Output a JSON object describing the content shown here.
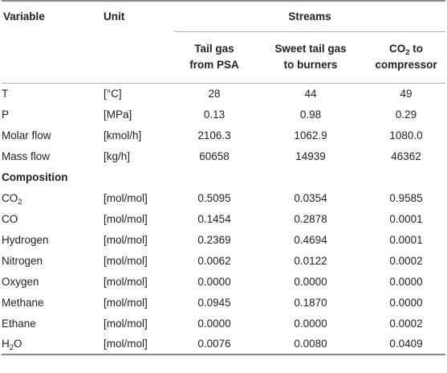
{
  "table": {
    "header": {
      "variable": "Variable",
      "unit": "Unit",
      "streams": "Streams",
      "col1": {
        "line1": "Tail gas",
        "line2": "from PSA"
      },
      "col2": {
        "line1": "Sweet tail gas",
        "line2": "to burners"
      },
      "col3": {
        "line1a": "CO",
        "line1sub": "2",
        "line1b": " to",
        "line2": "compressor"
      }
    },
    "rows": [
      {
        "var": "T",
        "unit": "[°C]",
        "v1": "28",
        "v2": "44",
        "v3": "49"
      },
      {
        "var": "P",
        "unit": "[MPa]",
        "v1": "0.13",
        "v2": "0.98",
        "v3": "0.29"
      },
      {
        "var": "Molar flow",
        "unit": "[kmol/h]",
        "v1": "2106.3",
        "v2": "1062.9",
        "v3": "1080.0"
      },
      {
        "var": "Mass flow",
        "unit": "[kg/h]",
        "v1": "60658",
        "v2": "14939",
        "v3": "46362"
      }
    ],
    "section": "Composition",
    "composition": [
      {
        "var": "CO",
        "sub": "2",
        "unit": "[mol/mol]",
        "v1": "0.5095",
        "v2": "0.0354",
        "v3": "0.9585"
      },
      {
        "var": "CO",
        "sub": "",
        "unit": "[mol/mol]",
        "v1": "0.1454",
        "v2": "0.2878",
        "v3": "0.0001"
      },
      {
        "var": "Hydrogen",
        "sub": "",
        "unit": "[mol/mol]",
        "v1": "0.2369",
        "v2": "0.4694",
        "v3": "0.0001"
      },
      {
        "var": "Nitrogen",
        "sub": "",
        "unit": "[mol/mol]",
        "v1": "0.0062",
        "v2": "0.0122",
        "v3": "0.0002"
      },
      {
        "var": "Oxygen",
        "sub": "",
        "unit": "[mol/mol]",
        "v1": "0.0000",
        "v2": "0.0000",
        "v3": "0.0000"
      },
      {
        "var": "Methane",
        "sub": "",
        "unit": "[mol/mol]",
        "v1": "0.0945",
        "v2": "0.1870",
        "v3": "0.0000"
      },
      {
        "var": "Ethane",
        "sub": "",
        "unit": "[mol/mol]",
        "v1": "0.0000",
        "v2": "0.0000",
        "v3": "0.0002"
      },
      {
        "var": "H",
        "sub": "2",
        "varTail": "O",
        "unit": "[mol/mol]",
        "v1": "0.0076",
        "v2": "0.0080",
        "v3": "0.0409"
      }
    ]
  }
}
